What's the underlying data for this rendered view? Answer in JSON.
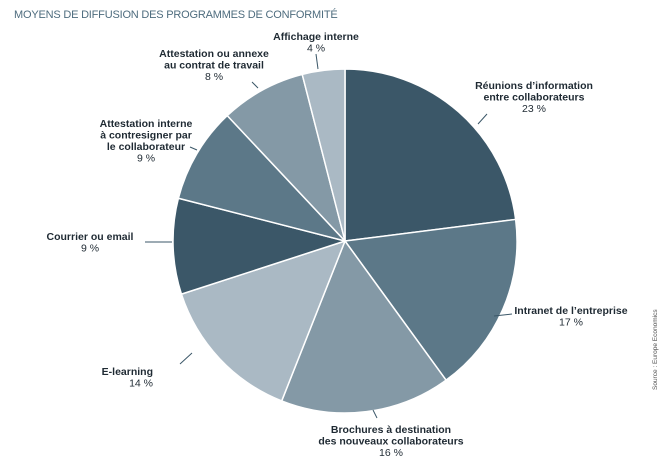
{
  "header": {
    "title": "MOYENS DE DIFFUSION DES PROGRAMMES DE CONFORMITÉ"
  },
  "footer": {
    "source": "Source : Europe Economics"
  },
  "chart_data": {
    "type": "pie",
    "title": "MOYENS DE DIFFUSION DES PROGRAMMES DE CONFORMITÉ",
    "start": "top, clockwise",
    "unit": "%",
    "slices": [
      {
        "name": "Réunions d'information entre collaborateurs",
        "label_lines": [
          "Réunions d’information",
          "entre collaborateurs"
        ],
        "value": 23,
        "value_label": "23 %",
        "color": "#3b5768"
      },
      {
        "name": "Intranet de l'entreprise",
        "label_lines": [
          "Intranet de l’entreprise"
        ],
        "value": 17,
        "value_label": "17 %",
        "color": "#5c7888"
      },
      {
        "name": "Brochures à destination des nouveaux collaborateurs",
        "label_lines": [
          "Brochures à destination",
          "des nouveaux collaborateurs"
        ],
        "value": 16,
        "value_label": "16 %",
        "color": "#8499a6"
      },
      {
        "name": "E-learning",
        "label_lines": [
          "E-learning"
        ],
        "value": 14,
        "value_label": "14 %",
        "color": "#aab9c4"
      },
      {
        "name": "Courrier ou email",
        "label_lines": [
          "Courrier ou email"
        ],
        "value": 9,
        "value_label": "9 %",
        "color": "#3b5768"
      },
      {
        "name": "Attestation interne à contresigner par le collaborateur",
        "label_lines": [
          "Attestation interne",
          "à contresigner par",
          "le collaborateur"
        ],
        "value": 9,
        "value_label": "9 %",
        "color": "#5c7888"
      },
      {
        "name": "Attestation ou annexe au contrat de travail",
        "label_lines": [
          "Attestation ou annexe",
          "au contrat de travail"
        ],
        "value": 8,
        "value_label": "8 %",
        "color": "#8499a6"
      },
      {
        "name": "Affichage interne",
        "label_lines": [
          "Affichage interne"
        ],
        "value": 4,
        "value_label": "4 %",
        "color": "#aab9c4"
      }
    ]
  }
}
